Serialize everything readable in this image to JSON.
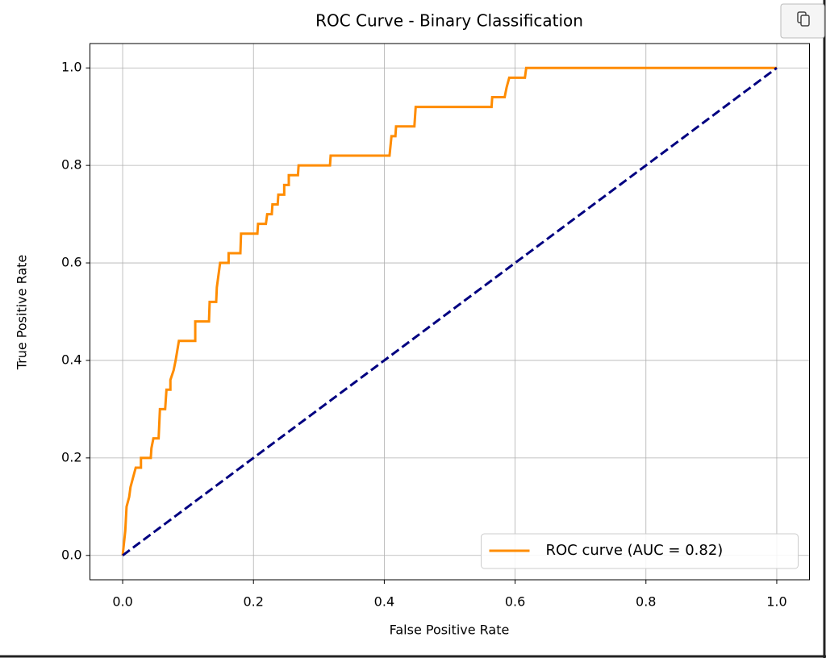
{
  "chart_data": {
    "type": "line",
    "title": "ROC Curve - Binary Classification",
    "xlabel": "False Positive Rate",
    "ylabel": "True Positive Rate",
    "xlim": [
      -0.05,
      1.05
    ],
    "ylim": [
      -0.05,
      1.05
    ],
    "xticks": [
      {
        "value": 0,
        "label": "0.0"
      },
      0.2,
      0.4,
      0.6,
      0.8,
      {
        "value": 1,
        "label": "1.0"
      }
    ],
    "yticks": [
      {
        "value": 0,
        "label": "0.0"
      },
      0.2,
      0.4,
      0.6,
      0.8,
      {
        "value": 1,
        "label": "1.0"
      }
    ],
    "grid": true,
    "legend": "lower right",
    "series": [
      {
        "name": "ROC curve (AUC = 0.82)",
        "color": "#ff8c00",
        "dash": false,
        "x": [
          0,
          0.004,
          0.006,
          0.01,
          0.012,
          0.016,
          0.02,
          0.028,
          0.028,
          0.043,
          0.044,
          0.047,
          0.055,
          0.057,
          0.065,
          0.067,
          0.073,
          0.073,
          0.078,
          0.081,
          0.086,
          0.111,
          0.111,
          0.132,
          0.133,
          0.143,
          0.144,
          0.149,
          0.162,
          0.162,
          0.18,
          0.181,
          0.206,
          0.207,
          0.219,
          0.221,
          0.228,
          0.229,
          0.237,
          0.238,
          0.247,
          0.247,
          0.254,
          0.254,
          0.268,
          0.269,
          0.317,
          0.318,
          0.408,
          0.411,
          0.417,
          0.418,
          0.446,
          0.448,
          0.564,
          0.565,
          0.584,
          0.587,
          0.591,
          0.615,
          0.617,
          1
        ],
        "values": [
          0,
          0.05,
          0.1,
          0.12,
          0.14,
          0.16,
          0.18,
          0.18,
          0.2,
          0.2,
          0.22,
          0.24,
          0.24,
          0.3,
          0.3,
          0.34,
          0.34,
          0.36,
          0.38,
          0.4,
          0.44,
          0.44,
          0.48,
          0.48,
          0.52,
          0.52,
          0.55,
          0.6,
          0.6,
          0.62,
          0.62,
          0.66,
          0.66,
          0.68,
          0.68,
          0.7,
          0.7,
          0.72,
          0.72,
          0.74,
          0.74,
          0.76,
          0.76,
          0.78,
          0.78,
          0.8,
          0.8,
          0.82,
          0.82,
          0.86,
          0.86,
          0.88,
          0.88,
          0.92,
          0.92,
          0.94,
          0.94,
          0.96,
          0.98,
          0.98,
          1,
          1
        ]
      },
      {
        "color": "#000080",
        "dash": true,
        "x": [
          0,
          1
        ],
        "values": [
          0,
          1
        ]
      }
    ]
  }
}
